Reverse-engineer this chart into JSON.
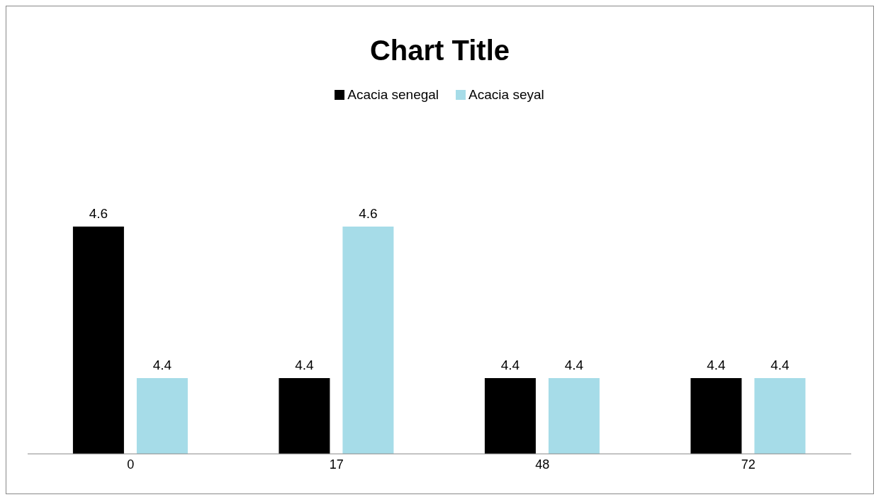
{
  "chart_data": {
    "type": "bar",
    "title": "Chart Title",
    "categories": [
      "0",
      "17",
      "48",
      "72"
    ],
    "series": [
      {
        "name": "Acacia senegal",
        "color": "#000000",
        "values": [
          4.6,
          4.4,
          4.4,
          4.4
        ]
      },
      {
        "name": "Acacia seyal",
        "color": "#a6dce8",
        "values": [
          4.4,
          4.6,
          4.4,
          4.4
        ]
      }
    ],
    "ylim": [
      4.3,
      4.6
    ],
    "tick_labels": "x",
    "data_labels": true,
    "legend": "top",
    "grid": false
  }
}
